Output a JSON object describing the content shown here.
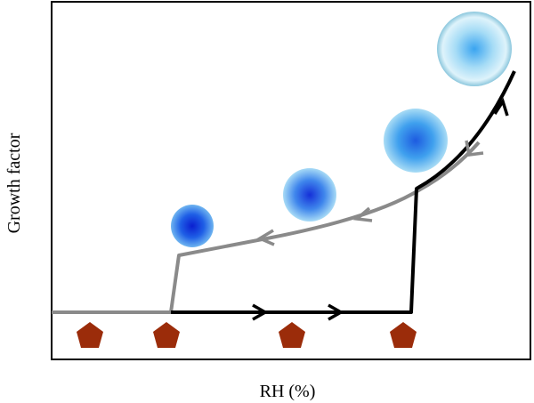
{
  "diagram": {
    "x_axis_label": "RH (%)",
    "y_axis_label": "Growth factor",
    "colors": {
      "humidification_curve": "#000000",
      "efflorescence_curve": "#8a8a8a",
      "dry_particle": "#9b2c0a",
      "droplet_center": "#1a3fd8",
      "frame": "#000000"
    },
    "elements": {
      "dry_particles": [
        "dry-particle",
        "dry-particle",
        "dry-particle",
        "dry-particle"
      ],
      "droplets": [
        "droplet-small",
        "droplet-medium",
        "droplet-large",
        "droplet-largest"
      ],
      "arrows_humidification": [
        "arrow-right",
        "arrow-right",
        "arrow-up"
      ],
      "arrows_efflorescence": [
        "arrow-down-left",
        "arrow-left",
        "arrow-left"
      ]
    }
  }
}
